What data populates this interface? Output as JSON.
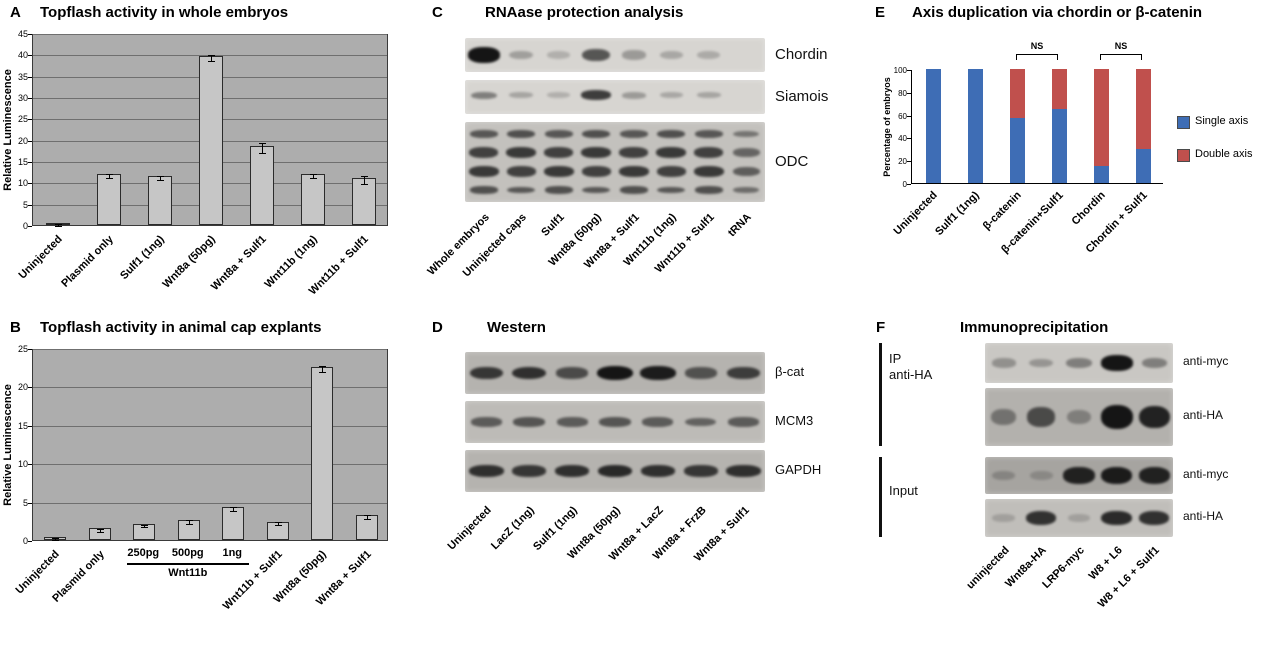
{
  "panels": {
    "A": {
      "letter": "A",
      "title": "Topflash activity in whole embryos"
    },
    "B": {
      "letter": "B",
      "title": "Topflash activity in animal cap explants"
    },
    "C": {
      "letter": "C",
      "title": "RNAase protection analysis"
    },
    "D": {
      "letter": "D",
      "title": "Western"
    },
    "E": {
      "letter": "E",
      "title": "Axis duplication via chordin or β-catenin"
    },
    "F": {
      "letter": "F",
      "title": "Immunoprecipitation"
    }
  },
  "chart_data": [
    {
      "id": "A",
      "type": "bar",
      "title": "Topflash activity in whole embryos",
      "ylabel": "Relative Luminescence",
      "ylim": [
        0,
        45
      ],
      "yticks": [
        0,
        5,
        10,
        15,
        20,
        25,
        30,
        35,
        40,
        45
      ],
      "grid": true,
      "categories": [
        "Uninjected",
        "Plasmid only",
        "Sulf1 (1ng)",
        "Wnt8a (50pg)",
        "Wnt8a + Sulf1",
        "Wnt11b (1ng)",
        "Wnt11b + Sulf1"
      ],
      "values": [
        0.5,
        12,
        11.5,
        39.5,
        18.5,
        12,
        11
      ],
      "errors": [
        0.2,
        0.5,
        0.5,
        0.7,
        1.2,
        0.5,
        1.0
      ],
      "bar_color": "#c6c6c6",
      "plot_bg": "#adadad"
    },
    {
      "id": "B",
      "type": "bar",
      "title": "Topflash activity in animal cap explants",
      "ylabel": "Relative Luminescence",
      "ylim": [
        0,
        25
      ],
      "yticks": [
        0,
        5,
        10,
        15,
        20,
        25
      ],
      "grid": true,
      "categories": [
        "Uninjected",
        "Plasmid only",
        "250pg",
        "500pg",
        "1ng",
        "Wnt11b + Sulf1",
        "Wnt8a (50pg)",
        "Wnt8a + Sulf1"
      ],
      "group_label": "Wnt11b",
      "group_indices": [
        2,
        3,
        4
      ],
      "values": [
        0.4,
        1.5,
        2.1,
        2.6,
        4.3,
        2.4,
        22.5,
        3.3
      ],
      "errors": [
        0.1,
        0.15,
        0.15,
        0.2,
        0.25,
        0.2,
        0.4,
        0.25
      ],
      "bar_color": "#c6c6c6",
      "plot_bg": "#adadad"
    },
    {
      "id": "E",
      "type": "stacked_bar",
      "title": "Axis duplication via chordin or β-catenin",
      "ylabel": "Percentage of embryos",
      "ylim": [
        0,
        100
      ],
      "yticks": [
        0,
        20,
        40,
        60,
        80,
        100
      ],
      "grid": false,
      "legend_position": "right",
      "categories": [
        "Uninjected",
        "Sulf1 (1ng)",
        "β-catenin",
        "β-catenin+Sulf1",
        "Chordin",
        "Chordin + Sulf1"
      ],
      "series": [
        {
          "name": "Single axis",
          "color": "#3e6db5",
          "values": [
            100,
            100,
            57,
            65,
            15,
            30
          ]
        },
        {
          "name": "Double axis",
          "color": "#c0504d",
          "values": [
            0,
            0,
            43,
            35,
            85,
            70
          ]
        }
      ],
      "annotations": [
        {
          "label": "NS",
          "from": 2,
          "to": 3
        },
        {
          "label": "NS",
          "from": 4,
          "to": 5
        }
      ]
    }
  ],
  "blots": {
    "C": {
      "lane_labels": [
        "Whole embryos",
        "Uninjected caps",
        "Sulf1",
        "Wnt8a (50pg)",
        "Wnt8a + Sulf1",
        "Wnt11b (1ng)",
        "Wnt11b + Sulf1",
        "tRNA"
      ],
      "strips": [
        {
          "label": "Chordin",
          "bg": "#d7d5d1",
          "rows": [
            {
              "y": 0.5,
              "h": 14,
              "intensities": [
                1.0,
                0.15,
                0.05,
                0.6,
                0.18,
                0.1,
                0.08,
                0.0
              ]
            }
          ]
        },
        {
          "label": "Siamois",
          "bg": "#d7d5d1",
          "rows": [
            {
              "y": 0.45,
              "h": 10,
              "intensities": [
                0.35,
                0.12,
                0.05,
                0.75,
                0.18,
                0.1,
                0.12,
                0.0
              ]
            }
          ]
        },
        {
          "label": "ODC",
          "bg": "#c3c1bd",
          "rows": [
            {
              "y": 0.15,
              "h": 9,
              "intensities": [
                0.55,
                0.6,
                0.55,
                0.6,
                0.55,
                0.6,
                0.55,
                0.35
              ]
            },
            {
              "y": 0.38,
              "h": 11,
              "intensities": [
                0.7,
                0.75,
                0.7,
                0.75,
                0.7,
                0.75,
                0.7,
                0.45
              ]
            },
            {
              "y": 0.62,
              "h": 11,
              "intensities": [
                0.75,
                0.7,
                0.75,
                0.7,
                0.75,
                0.7,
                0.75,
                0.5
              ]
            },
            {
              "y": 0.85,
              "h": 8,
              "intensities": [
                0.6,
                0.55,
                0.6,
                0.55,
                0.6,
                0.55,
                0.6,
                0.4
              ]
            }
          ]
        }
      ]
    },
    "D": {
      "lane_labels": [
        "Uninjected",
        "LacZ (1ng)",
        "Sulf1 (1ng)",
        "Wnt8a (50pg)",
        "Wnt8a + LacZ",
        "Wnt8a + FrzB",
        "Wnt8a + Sulf1"
      ],
      "strips": [
        {
          "label": "β-cat",
          "bg": "#b5b3af",
          "rows": [
            {
              "y": 0.5,
              "h": 13,
              "intensities": [
                0.75,
                0.8,
                0.6,
                1.0,
                0.95,
                0.55,
                0.7
              ]
            }
          ]
        },
        {
          "label": "MCM3",
          "bg": "#bdbbb7",
          "rows": [
            {
              "y": 0.5,
              "h": 11,
              "intensities": [
                0.5,
                0.55,
                0.5,
                0.55,
                0.5,
                0.45,
                0.5
              ]
            }
          ]
        },
        {
          "label": "GAPDH",
          "bg": "#b5b3af",
          "rows": [
            {
              "y": 0.5,
              "h": 12,
              "intensities": [
                0.8,
                0.75,
                0.8,
                0.85,
                0.8,
                0.75,
                0.8
              ]
            }
          ]
        }
      ]
    },
    "F": {
      "lane_labels": [
        "uninjected",
        "Wnt8a-HA",
        "LRP6-myc",
        "W8 + L6",
        "W8 + L6 + Sulf1"
      ],
      "groups": [
        {
          "label": "IP\nanti-HA"
        },
        {
          "label": "Input"
        }
      ],
      "strips": [
        {
          "label": "anti-myc",
          "bg": "#c9c7c3",
          "rows": [
            {
              "y": 0.5,
              "h": 14,
              "intensities": [
                0.18,
                0.15,
                0.3,
                1.0,
                0.3
              ]
            }
          ]
        },
        {
          "label": "anti-HA",
          "bg": "#b3b1ad",
          "rows": [
            {
              "y": 0.5,
              "h": 22,
              "intensities": [
                0.3,
                0.6,
                0.2,
                1.0,
                0.9
              ]
            }
          ]
        },
        {
          "label": "anti-myc",
          "bg": "#a6a4a0",
          "rows": [
            {
              "y": 0.5,
              "h": 16,
              "intensities": [
                0.08,
                0.05,
                0.9,
                0.95,
                0.9
              ]
            }
          ]
        },
        {
          "label": "anti-HA",
          "bg": "#c0beba",
          "rows": [
            {
              "y": 0.5,
              "h": 14,
              "intensities": [
                0.03,
                0.8,
                0.03,
                0.85,
                0.8
              ]
            }
          ]
        }
      ]
    }
  }
}
